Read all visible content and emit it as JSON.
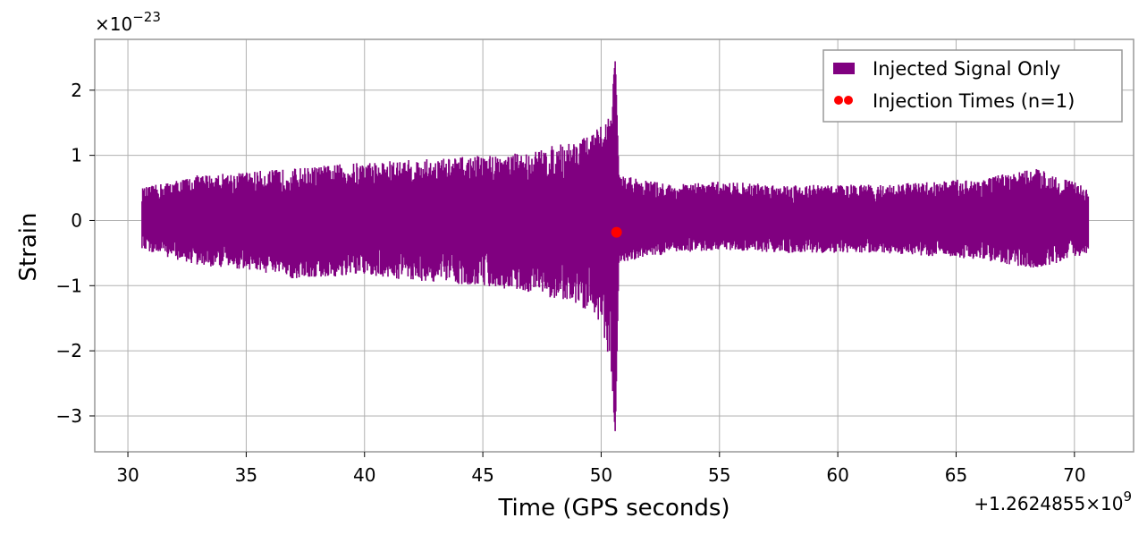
{
  "chart_data": {
    "type": "line",
    "title": "",
    "xlabel": "Time (GPS seconds)",
    "ylabel": "Strain",
    "x_offset_label": "+1.2624855×10",
    "x_offset_exp": "9",
    "y_multiplier_label": "×10",
    "y_multiplier_exp": "−23",
    "xlim": [
      28.6,
      72.5
    ],
    "ylim": [
      -3.55,
      2.78
    ],
    "xticks": [
      30,
      35,
      40,
      45,
      50,
      55,
      60,
      65,
      70
    ],
    "xtick_labels": [
      "30",
      "35",
      "40",
      "45",
      "50",
      "55",
      "60",
      "65",
      "70"
    ],
    "yticks": [
      -3,
      -2,
      -1,
      0,
      1,
      2
    ],
    "ytick_labels": [
      "−3",
      "−2",
      "−1",
      "0",
      "1",
      "2"
    ],
    "grid": true,
    "legend_position": "top-right",
    "series": [
      {
        "name": "Injected Signal Only",
        "color": "#800080",
        "kind": "filled-envelope",
        "x_start": 30.6,
        "x_end": 70.6,
        "envelope": [
          {
            "x": 30.6,
            "min": -0.45,
            "max": 0.5
          },
          {
            "x": 33,
            "min": -0.7,
            "max": 0.7
          },
          {
            "x": 35,
            "min": -0.75,
            "max": 0.75
          },
          {
            "x": 37,
            "min": -0.9,
            "max": 0.8
          },
          {
            "x": 40,
            "min": -0.85,
            "max": 0.9
          },
          {
            "x": 43,
            "min": -0.95,
            "max": 0.95
          },
          {
            "x": 45,
            "min": -1.0,
            "max": 1.0
          },
          {
            "x": 47,
            "min": -1.1,
            "max": 1.05
          },
          {
            "x": 48.5,
            "min": -1.25,
            "max": 1.2
          },
          {
            "x": 49.5,
            "min": -1.4,
            "max": 1.3
          },
          {
            "x": 50.0,
            "min": -1.6,
            "max": 1.45
          },
          {
            "x": 50.4,
            "min": -2.2,
            "max": 1.7
          },
          {
            "x": 50.6,
            "min": -3.27,
            "max": 2.47
          },
          {
            "x": 50.75,
            "min": -0.65,
            "max": 0.7
          },
          {
            "x": 53,
            "min": -0.5,
            "max": 0.55
          },
          {
            "x": 55,
            "min": -0.45,
            "max": 0.6
          },
          {
            "x": 58,
            "min": -0.5,
            "max": 0.55
          },
          {
            "x": 62,
            "min": -0.5,
            "max": 0.55
          },
          {
            "x": 66,
            "min": -0.6,
            "max": 0.65
          },
          {
            "x": 68.5,
            "min": -0.75,
            "max": 0.8
          },
          {
            "x": 70.6,
            "min": -0.5,
            "max": 0.5
          }
        ]
      },
      {
        "name": "Injection Times (n=1)",
        "color": "#ff0000",
        "kind": "scatter",
        "points": [
          {
            "x": 50.65,
            "y": -0.18
          }
        ]
      }
    ]
  }
}
